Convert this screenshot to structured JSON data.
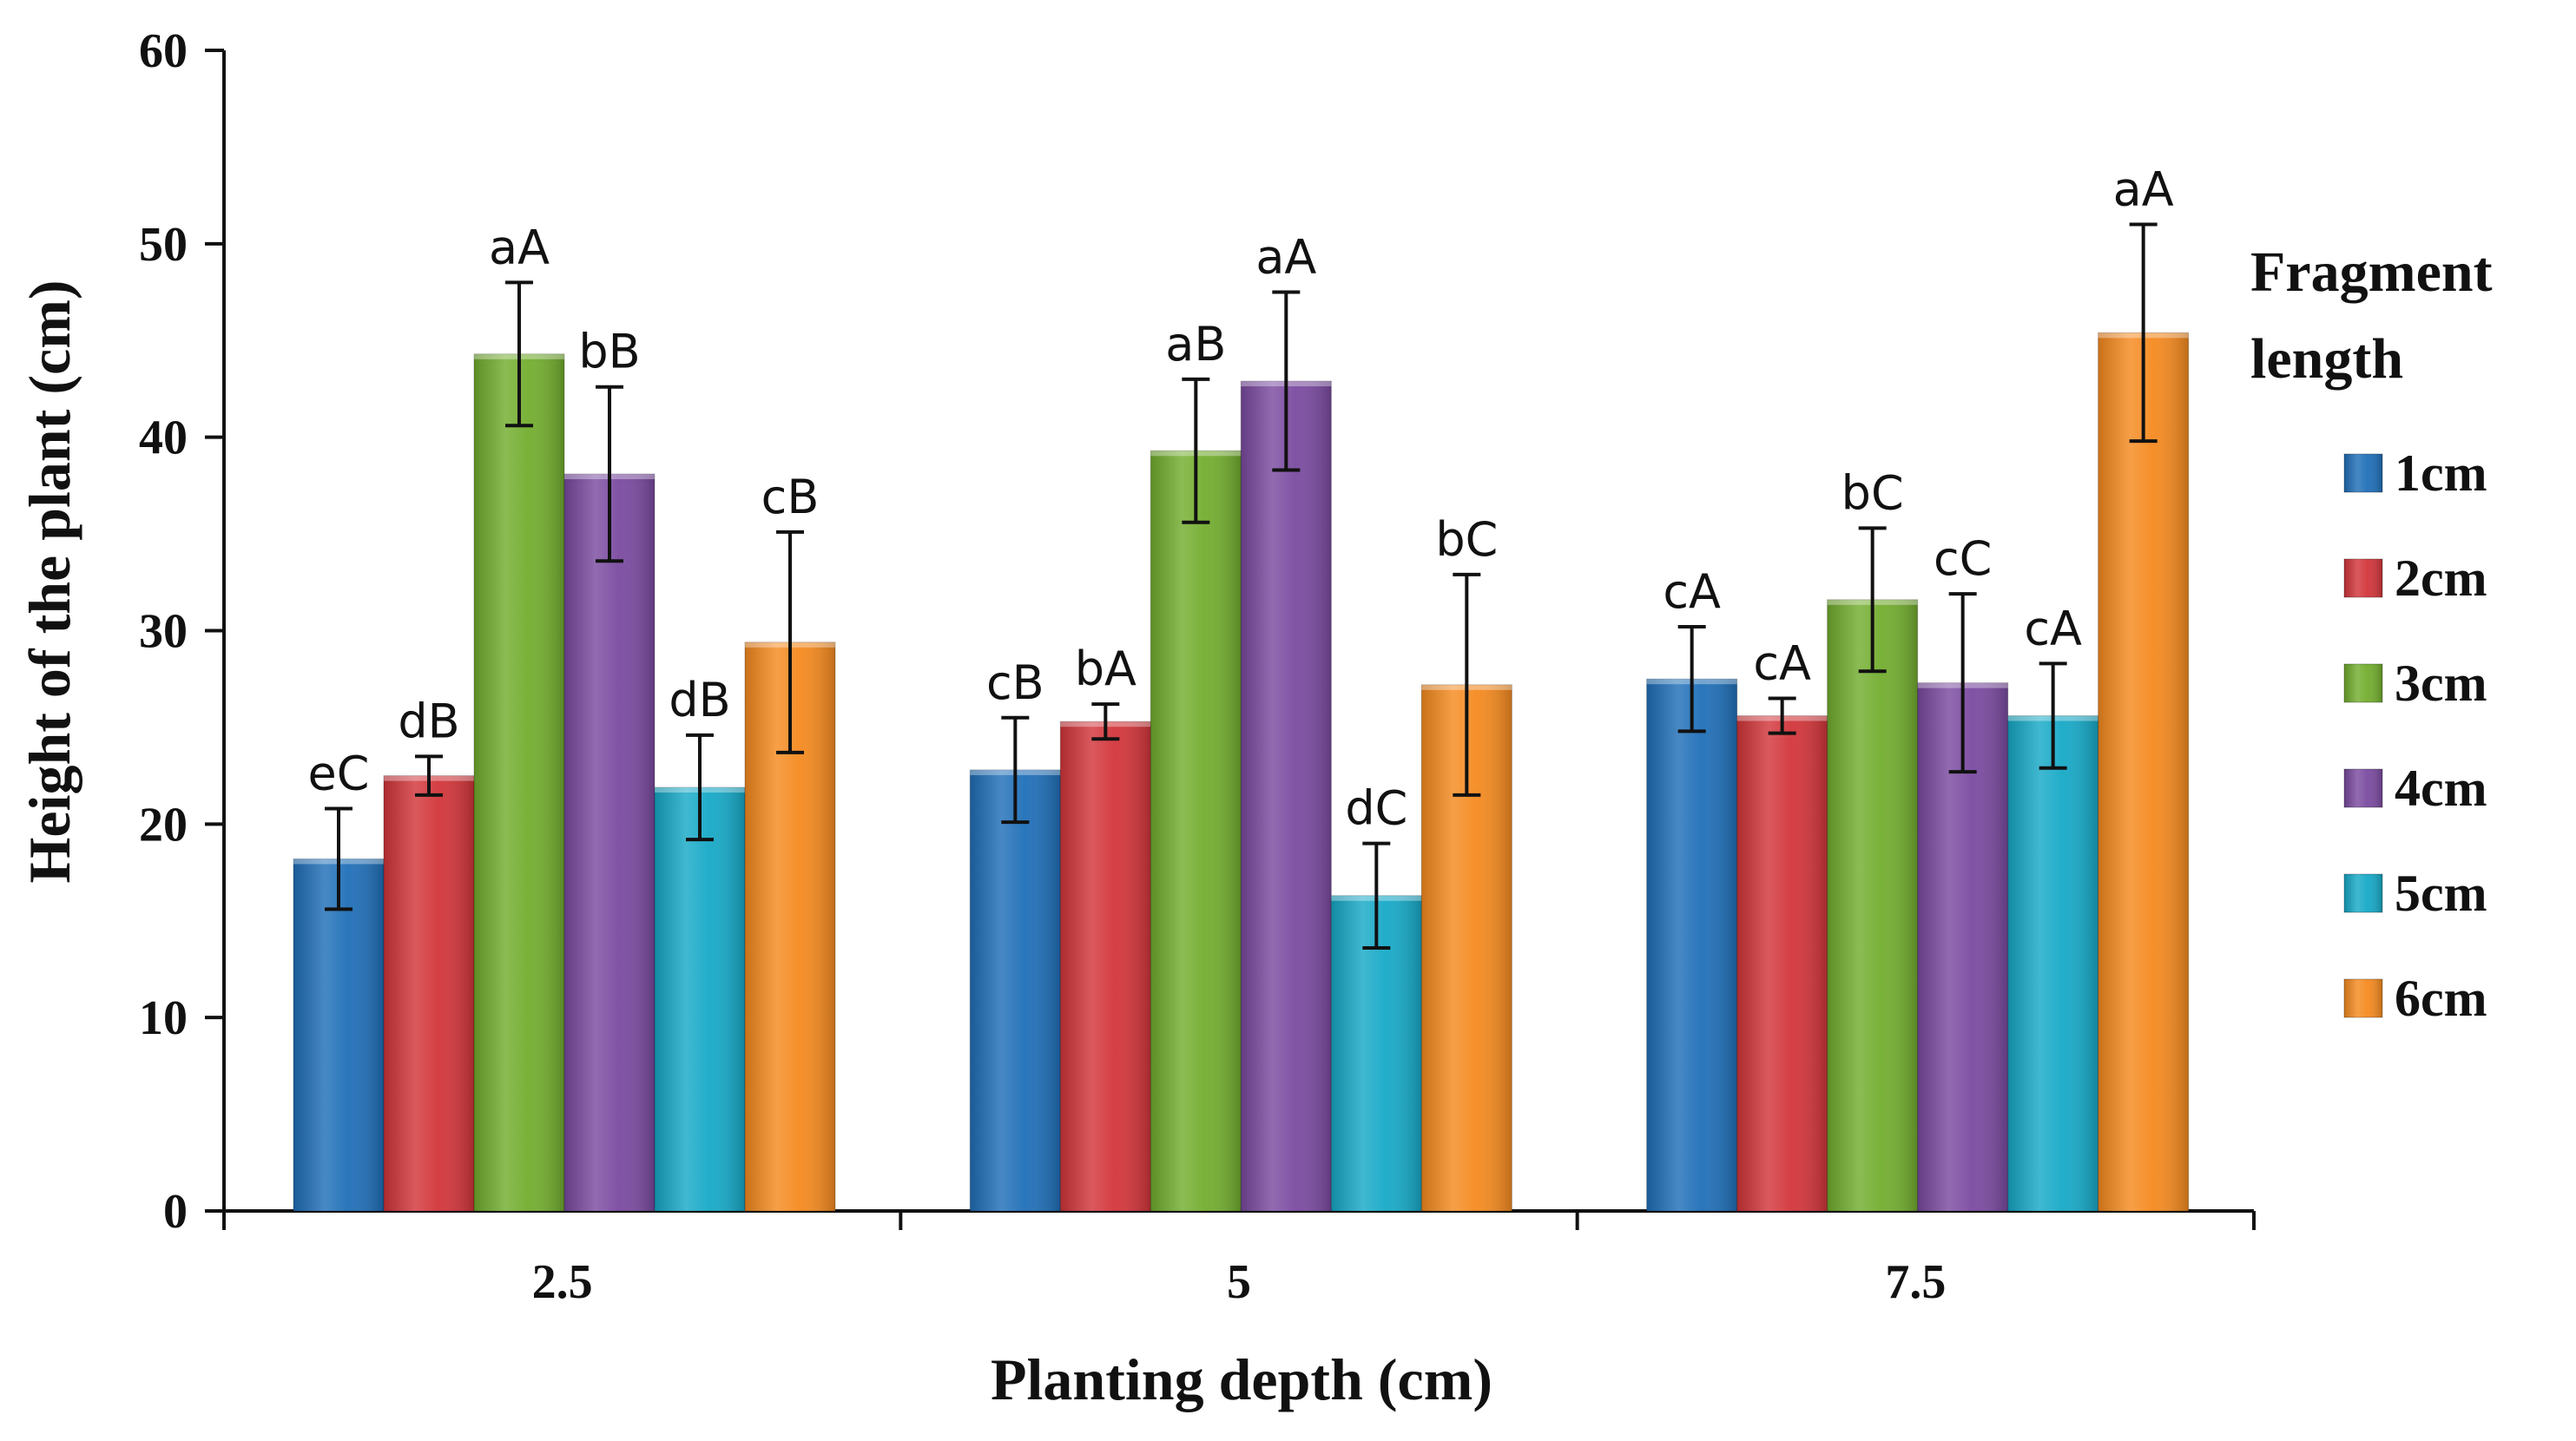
{
  "chart_data": {
    "type": "bar",
    "xlabel": "Planting depth (cm)",
    "ylabel": "Height of the plant (cm)",
    "ylim": [
      0,
      60
    ],
    "yticks": [
      "0",
      "10",
      "20",
      "30",
      "40",
      "50",
      "60"
    ],
    "categories": [
      "2.5",
      "5",
      "7.5"
    ],
    "legend_title": "Fragment length",
    "legend_title_lines": [
      "Fragment",
      "length"
    ],
    "legend_position": "right",
    "series": [
      {
        "name": "1cm",
        "color": "#1f6fb8",
        "values": [
          18.2,
          22.8,
          27.5
        ],
        "errors": [
          2.6,
          2.7,
          2.7
        ],
        "labels": [
          "eC",
          "cB",
          "cA"
        ]
      },
      {
        "name": "2cm",
        "color": "#d2353a",
        "values": [
          22.5,
          25.3,
          25.6
        ],
        "errors": [
          1.0,
          0.9,
          0.9
        ],
        "labels": [
          "dB",
          "bA",
          "cA"
        ]
      },
      {
        "name": "3cm",
        "color": "#72ad2e",
        "values": [
          44.3,
          39.3,
          31.6
        ],
        "errors": [
          3.7,
          3.7,
          3.7
        ],
        "labels": [
          "aA",
          "aB",
          "bC"
        ]
      },
      {
        "name": "4cm",
        "color": "#7a4aa0",
        "values": [
          38.1,
          42.9,
          27.3
        ],
        "errors": [
          4.5,
          4.6,
          4.6
        ],
        "labels": [
          "bB",
          "aA",
          "cC"
        ]
      },
      {
        "name": "5cm",
        "color": "#16a9c7",
        "values": [
          21.9,
          16.3,
          25.6
        ],
        "errors": [
          2.7,
          2.7,
          2.7
        ],
        "labels": [
          "dB",
          "dC",
          "cA"
        ]
      },
      {
        "name": "6cm",
        "color": "#f58a1f",
        "values": [
          29.4,
          27.2,
          45.4
        ],
        "errors": [
          5.7,
          5.7,
          5.6
        ],
        "labels": [
          "cB",
          "bC",
          "aA"
        ]
      }
    ]
  }
}
